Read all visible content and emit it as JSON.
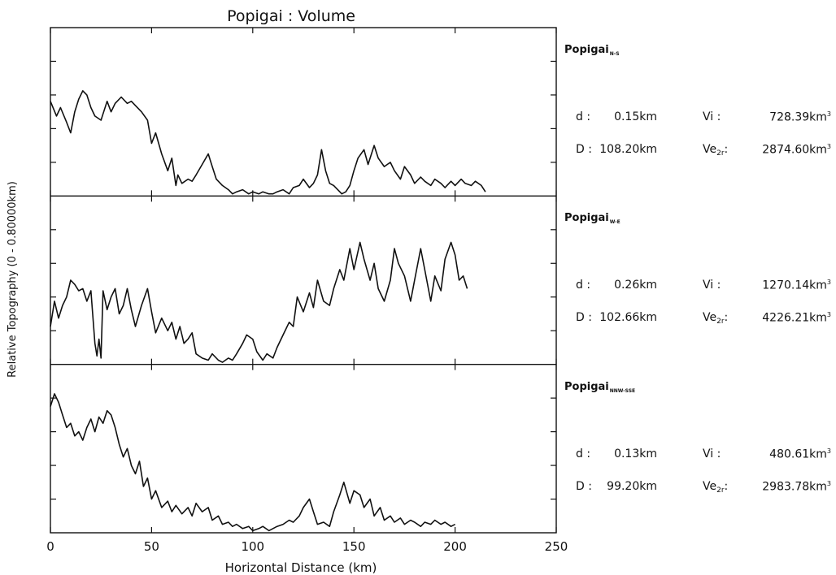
{
  "chart_data": {
    "type": "line",
    "title": "Popigai : Volume",
    "xlabel": "Horizontal Distance (km)",
    "ylabel": "Relative Topography (0 - 0.80000km)",
    "xlim": [
      0,
      250
    ],
    "x_ticks": [
      0,
      50,
      100,
      150,
      200,
      250
    ],
    "panels": [
      {
        "name": "Popigai",
        "subscript": "N-S",
        "stats": {
          "d": "0.15km",
          "D": "108.20km",
          "Vi": "728.39km",
          "Ve": "2874.60km"
        },
        "x": [
          0,
          3,
          5,
          8,
          10,
          12,
          14,
          16,
          18,
          20,
          22,
          25,
          28,
          30,
          32,
          35,
          38,
          40,
          42,
          45,
          48,
          50,
          52,
          55,
          58,
          60,
          62,
          63,
          65,
          68,
          70,
          72,
          75,
          78,
          80,
          82,
          85,
          88,
          90,
          92,
          95,
          98,
          100,
          103,
          105,
          108,
          110,
          112,
          115,
          118,
          120,
          123,
          125,
          128,
          130,
          132,
          134,
          136,
          138,
          140,
          142,
          144,
          146,
          148,
          150,
          152,
          155,
          157,
          160,
          162,
          165,
          168,
          170,
          173,
          175,
          178,
          180,
          183,
          185,
          188,
          190,
          193,
          195,
          198,
          200,
          203,
          205,
          208,
          210,
          213,
          215
        ],
        "y": [
          0.45,
          0.38,
          0.42,
          0.35,
          0.3,
          0.4,
          0.46,
          0.5,
          0.48,
          0.42,
          0.38,
          0.36,
          0.45,
          0.4,
          0.44,
          0.47,
          0.44,
          0.45,
          0.43,
          0.4,
          0.36,
          0.25,
          0.3,
          0.2,
          0.12,
          0.18,
          0.05,
          0.1,
          0.06,
          0.08,
          0.07,
          0.1,
          0.15,
          0.2,
          0.14,
          0.08,
          0.05,
          0.03,
          0.01,
          0.02,
          0.03,
          0.01,
          0.02,
          0.01,
          0.02,
          0.01,
          0.01,
          0.02,
          0.03,
          0.01,
          0.04,
          0.05,
          0.08,
          0.04,
          0.06,
          0.1,
          0.22,
          0.12,
          0.06,
          0.05,
          0.03,
          0.01,
          0.02,
          0.05,
          0.12,
          0.18,
          0.22,
          0.15,
          0.24,
          0.18,
          0.14,
          0.16,
          0.12,
          0.08,
          0.14,
          0.1,
          0.06,
          0.09,
          0.07,
          0.05,
          0.08,
          0.06,
          0.04,
          0.07,
          0.05,
          0.08,
          0.06,
          0.05,
          0.07,
          0.05,
          0.02
        ]
      },
      {
        "name": "Popigai",
        "subscript": "W-E",
        "stats": {
          "d": "0.26km",
          "D": "102.66km",
          "Vi": "1270.14km",
          "Ve": "4226.21km"
        },
        "x": [
          0,
          2,
          4,
          6,
          8,
          10,
          12,
          14,
          16,
          18,
          20,
          22,
          23,
          24,
          25,
          26,
          28,
          30,
          32,
          34,
          36,
          38,
          40,
          42,
          45,
          48,
          50,
          52,
          55,
          58,
          60,
          62,
          64,
          66,
          68,
          70,
          72,
          75,
          78,
          80,
          83,
          85,
          88,
          90,
          92,
          95,
          97,
          100,
          102,
          105,
          107,
          110,
          112,
          115,
          118,
          120,
          122,
          125,
          128,
          130,
          132,
          135,
          138,
          140,
          143,
          145,
          148,
          150,
          153,
          155,
          158,
          160,
          162,
          165,
          168,
          170,
          172,
          175,
          178,
          180,
          183,
          185,
          188,
          190,
          193,
          195,
          198,
          200,
          202,
          204,
          206
        ],
        "y": [
          0.18,
          0.3,
          0.22,
          0.28,
          0.32,
          0.4,
          0.38,
          0.35,
          0.36,
          0.3,
          0.35,
          0.1,
          0.04,
          0.12,
          0.03,
          0.35,
          0.26,
          0.32,
          0.36,
          0.24,
          0.28,
          0.36,
          0.26,
          0.18,
          0.28,
          0.36,
          0.25,
          0.15,
          0.22,
          0.16,
          0.2,
          0.12,
          0.18,
          0.1,
          0.12,
          0.15,
          0.05,
          0.03,
          0.02,
          0.05,
          0.02,
          0.01,
          0.03,
          0.02,
          0.05,
          0.1,
          0.14,
          0.12,
          0.06,
          0.02,
          0.05,
          0.03,
          0.08,
          0.14,
          0.2,
          0.18,
          0.32,
          0.25,
          0.34,
          0.27,
          0.4,
          0.3,
          0.28,
          0.36,
          0.45,
          0.4,
          0.55,
          0.45,
          0.58,
          0.5,
          0.4,
          0.48,
          0.36,
          0.3,
          0.4,
          0.55,
          0.48,
          0.42,
          0.3,
          0.4,
          0.55,
          0.45,
          0.3,
          0.42,
          0.35,
          0.5,
          0.58,
          0.52,
          0.4,
          0.42,
          0.36
        ]
      },
      {
        "name": "Popigai",
        "subscript": "NNW-SSE",
        "stats": {
          "d": "0.13km",
          "D": "99.20km",
          "Vi": "480.61km",
          "Ve": "2983.78km"
        },
        "x": [
          0,
          2,
          4,
          6,
          8,
          10,
          12,
          14,
          16,
          18,
          20,
          22,
          24,
          26,
          28,
          30,
          32,
          34,
          36,
          38,
          40,
          42,
          44,
          46,
          48,
          50,
          52,
          55,
          58,
          60,
          62,
          65,
          68,
          70,
          72,
          75,
          78,
          80,
          83,
          85,
          88,
          90,
          92,
          95,
          98,
          100,
          103,
          105,
          108,
          110,
          112,
          115,
          118,
          120,
          123,
          125,
          128,
          130,
          132,
          135,
          138,
          140,
          143,
          145,
          148,
          150,
          153,
          155,
          158,
          160,
          163,
          165,
          168,
          170,
          173,
          175,
          178,
          180,
          183,
          185,
          188,
          190,
          193,
          195,
          198,
          200
        ],
        "y": [
          0.6,
          0.66,
          0.62,
          0.56,
          0.5,
          0.52,
          0.46,
          0.48,
          0.44,
          0.5,
          0.54,
          0.48,
          0.55,
          0.52,
          0.58,
          0.56,
          0.5,
          0.42,
          0.36,
          0.4,
          0.32,
          0.28,
          0.34,
          0.22,
          0.26,
          0.16,
          0.2,
          0.12,
          0.15,
          0.1,
          0.13,
          0.09,
          0.12,
          0.08,
          0.14,
          0.1,
          0.12,
          0.06,
          0.08,
          0.04,
          0.05,
          0.03,
          0.04,
          0.02,
          0.03,
          0.01,
          0.02,
          0.03,
          0.01,
          0.02,
          0.03,
          0.04,
          0.06,
          0.05,
          0.08,
          0.12,
          0.16,
          0.1,
          0.04,
          0.05,
          0.03,
          0.1,
          0.18,
          0.24,
          0.14,
          0.2,
          0.18,
          0.12,
          0.16,
          0.08,
          0.12,
          0.06,
          0.08,
          0.05,
          0.07,
          0.04,
          0.06,
          0.05,
          0.03,
          0.05,
          0.04,
          0.06,
          0.04,
          0.05,
          0.03,
          0.04
        ]
      }
    ]
  }
}
